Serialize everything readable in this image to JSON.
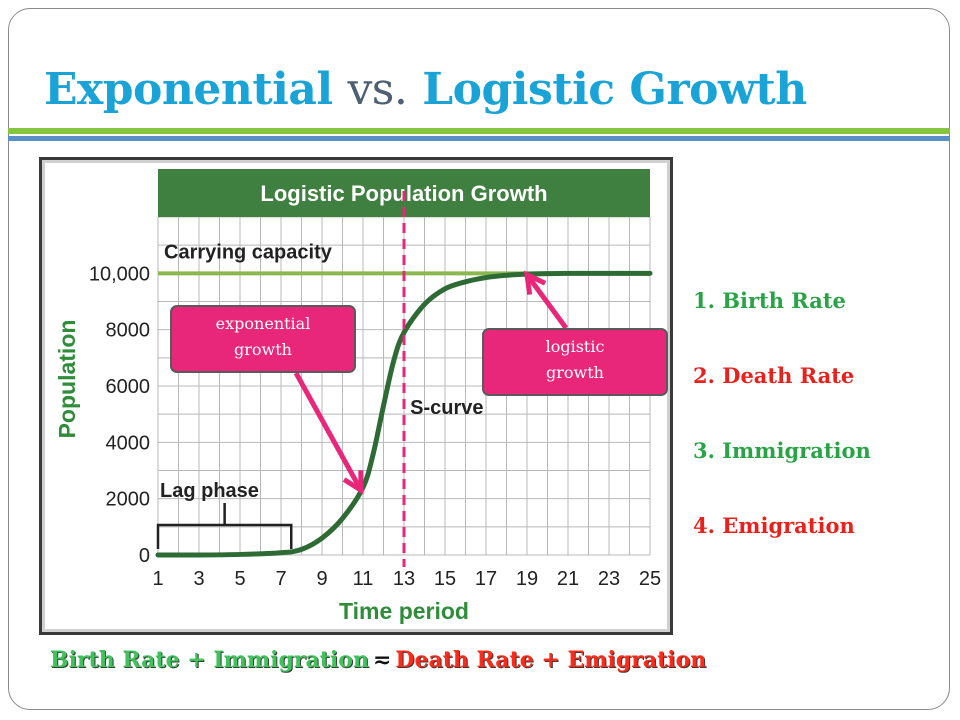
{
  "slide": {
    "title_part1": "Exponential",
    "title_vs": "vs.",
    "title_part2": "Logistic Growth"
  },
  "chart_data": {
    "type": "line",
    "title": "Logistic Population Growth",
    "xlabel": "Time period",
    "ylabel": "Population",
    "x_ticks": [
      1,
      3,
      5,
      7,
      9,
      11,
      13,
      15,
      17,
      19,
      21,
      23,
      25
    ],
    "y_ticks": [
      0,
      2000,
      4000,
      6000,
      8000,
      10000
    ],
    "y_tick_labels": [
      "0",
      "2000",
      "4000",
      "6000",
      "8000",
      "10,000"
    ],
    "xlim": [
      1,
      25
    ],
    "ylim": [
      0,
      12000
    ],
    "grid": true,
    "carrying_capacity": {
      "label": "Carrying capacity",
      "value": 10000
    },
    "series": [
      {
        "x": [
          1,
          3,
          5,
          7,
          8,
          9,
          10,
          11,
          11.5,
          12,
          12.5,
          13,
          14,
          15,
          16,
          17,
          18,
          19,
          20,
          21,
          23,
          25
        ],
        "y": [
          0,
          0,
          20,
          80,
          200,
          600,
          1300,
          2400,
          3600,
          5300,
          6900,
          7900,
          8900,
          9450,
          9700,
          9850,
          9930,
          9970,
          9990,
          10000,
          10000,
          10000
        ]
      }
    ],
    "annotations": {
      "lag_phase": {
        "label": "Lag phase",
        "x_range": [
          1,
          7.5
        ]
      },
      "s_curve": {
        "label": "S-curve",
        "x": 13.3,
        "y": 5000
      },
      "inflection_marker_x": 13
    },
    "colors": {
      "header": "#3f7f3f",
      "curve": "#2e6b34",
      "capacity_line": "#8ab84f",
      "marker_line": "#e8277a",
      "arrows": "#e8277a"
    }
  },
  "callouts": {
    "exponential": {
      "line1": "exponential",
      "line2": "growth",
      "points_to": {
        "x": 10.9,
        "y": 2300
      }
    },
    "logistic": {
      "line1": "logistic",
      "line2": "growth",
      "points_to": {
        "x": 19,
        "y": 9950
      }
    }
  },
  "factors": [
    {
      "text": "1. Birth Rate",
      "color": "green"
    },
    {
      "text": "2. Death Rate",
      "color": "red"
    },
    {
      "text": "3. Immigration",
      "color": "green"
    },
    {
      "text": "4. Emigration",
      "color": "red"
    }
  ],
  "equation": {
    "left": "Birth Rate + Immigration",
    "operator": "≂",
    "right": "Death Rate + Emigration"
  }
}
